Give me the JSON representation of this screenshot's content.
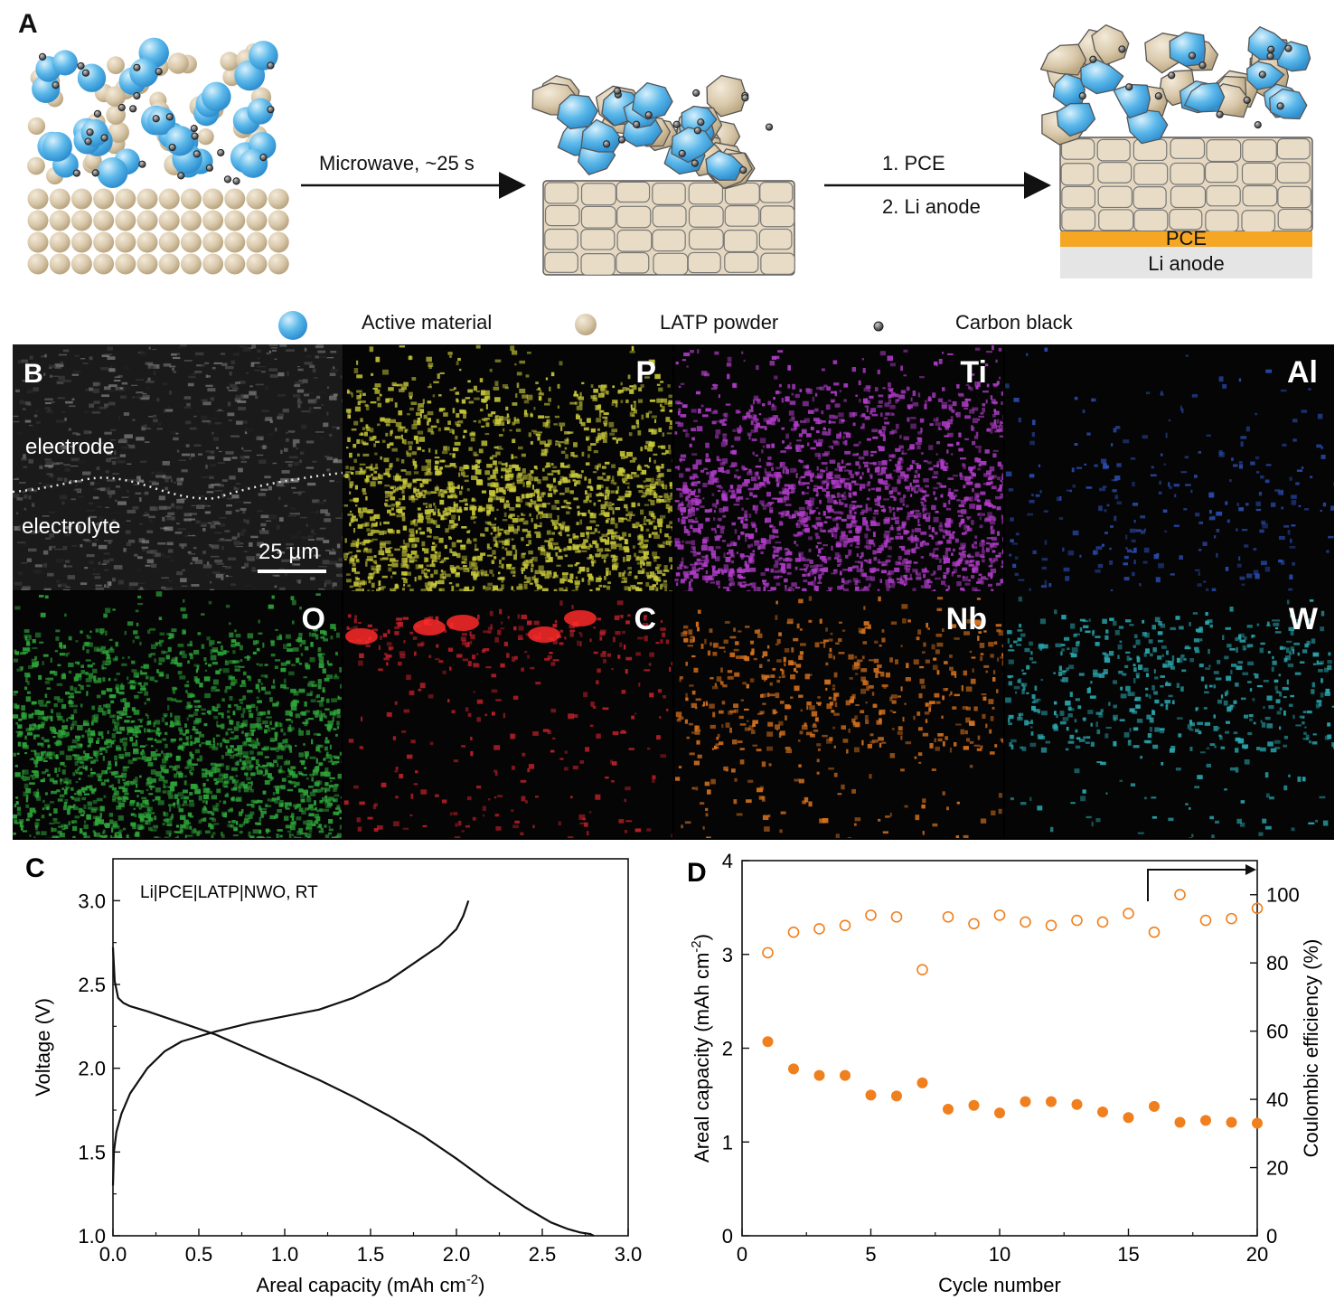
{
  "panelA": {
    "label": "A",
    "step1": "Microwave, ~25 s",
    "step2a": "1. PCE",
    "step2b": "2. Li anode",
    "layer_pce": "PCE",
    "layer_anode": "Li anode",
    "colors": {
      "active": "#5bb8ea",
      "latp": "#d9c8ab",
      "carbon": "#555555",
      "pce": "#f5a623",
      "anode": "#e5e5e5"
    }
  },
  "legend": {
    "active": "Active material",
    "latp": "LATP powder",
    "carbon": "Carbon black"
  },
  "panelB": {
    "label": "B",
    "electrode": "electrode",
    "electrolyte": "electrolyte",
    "scale": "25 µm",
    "maps": [
      {
        "element": "P",
        "color": "#c8c83a"
      },
      {
        "element": "Ti",
        "color": "#b03cc8"
      },
      {
        "element": "Al",
        "color": "#2a4cb0"
      },
      {
        "element": "O",
        "color": "#2ea63a"
      },
      {
        "element": "C",
        "color": "#c0202a"
      },
      {
        "element": "Nb",
        "color": "#d9731e"
      },
      {
        "element": "W",
        "color": "#2aa8b0"
      }
    ]
  },
  "chart_data": [
    {
      "panel": "C",
      "type": "line",
      "annotation": "Li|PCE|LATP|NWO, RT",
      "xlabel": "Areal capacity (mAh cm",
      "xlabel_sup": "-2",
      "xlabel_end": ")",
      "ylabel": "Voltage (V)",
      "xlim": [
        0,
        3.0
      ],
      "ylim": [
        1.0,
        3.25
      ],
      "xticks": [
        "0.0",
        "0.5",
        "1.0",
        "1.5",
        "2.0",
        "2.5",
        "3.0"
      ],
      "yticks": [
        "1.0",
        "1.5",
        "2.0",
        "2.5",
        "3.0"
      ],
      "series": [
        {
          "name": "discharge",
          "x": [
            0,
            0.01,
            0.03,
            0.06,
            0.1,
            0.2,
            0.4,
            0.6,
            0.8,
            1.0,
            1.2,
            1.4,
            1.6,
            1.8,
            2.0,
            2.2,
            2.4,
            2.55,
            2.65,
            2.72,
            2.78,
            2.8
          ],
          "y": [
            2.72,
            2.52,
            2.42,
            2.39,
            2.37,
            2.34,
            2.27,
            2.2,
            2.11,
            2.02,
            1.93,
            1.83,
            1.72,
            1.6,
            1.46,
            1.31,
            1.17,
            1.08,
            1.04,
            1.02,
            1.01,
            1.0
          ]
        },
        {
          "name": "charge",
          "x": [
            0,
            0.005,
            0.02,
            0.05,
            0.1,
            0.2,
            0.3,
            0.4,
            0.5,
            0.6,
            0.8,
            1.0,
            1.2,
            1.4,
            1.6,
            1.8,
            1.9,
            2.0,
            2.04,
            2.07
          ],
          "y": [
            1.3,
            1.5,
            1.62,
            1.73,
            1.85,
            2.0,
            2.1,
            2.16,
            2.19,
            2.22,
            2.27,
            2.31,
            2.35,
            2.42,
            2.52,
            2.66,
            2.73,
            2.83,
            2.91,
            3.0
          ]
        }
      ]
    },
    {
      "panel": "D",
      "type": "scatter",
      "xlabel": "Cycle number",
      "ylabel": "Areal capacity (mAh cm",
      "ylabel_sup": "-2",
      "ylabel_end": ")",
      "ylabel_right": "Coulombic efficiency (%)",
      "xlim": [
        0,
        20
      ],
      "ylim": [
        0,
        4
      ],
      "ylim_right": [
        0,
        110
      ],
      "xticks": [
        "0",
        "5",
        "10",
        "15",
        "20"
      ],
      "yticks": [
        "0",
        "1",
        "2",
        "3",
        "4"
      ],
      "yticks_right": [
        "0",
        "20",
        "40",
        "60",
        "80",
        "100"
      ],
      "x": [
        1,
        2,
        3,
        4,
        5,
        6,
        7,
        8,
        9,
        10,
        11,
        12,
        13,
        14,
        15,
        16,
        17,
        18,
        19,
        20
      ],
      "series": [
        {
          "name": "Areal capacity",
          "axis": "left",
          "filled": true,
          "values": [
            2.07,
            1.78,
            1.71,
            1.71,
            1.5,
            1.49,
            1.63,
            1.35,
            1.39,
            1.31,
            1.43,
            1.43,
            1.4,
            1.32,
            1.26,
            1.38,
            1.21,
            1.23,
            1.21,
            1.2
          ]
        },
        {
          "name": "Coulombic efficiency",
          "axis": "right",
          "filled": false,
          "values": [
            83,
            89,
            90,
            91,
            94,
            93.5,
            78,
            93.5,
            91.5,
            94,
            92,
            91,
            92.5,
            92,
            94.5,
            89,
            100,
            92.5,
            93,
            96
          ]
        }
      ]
    }
  ]
}
